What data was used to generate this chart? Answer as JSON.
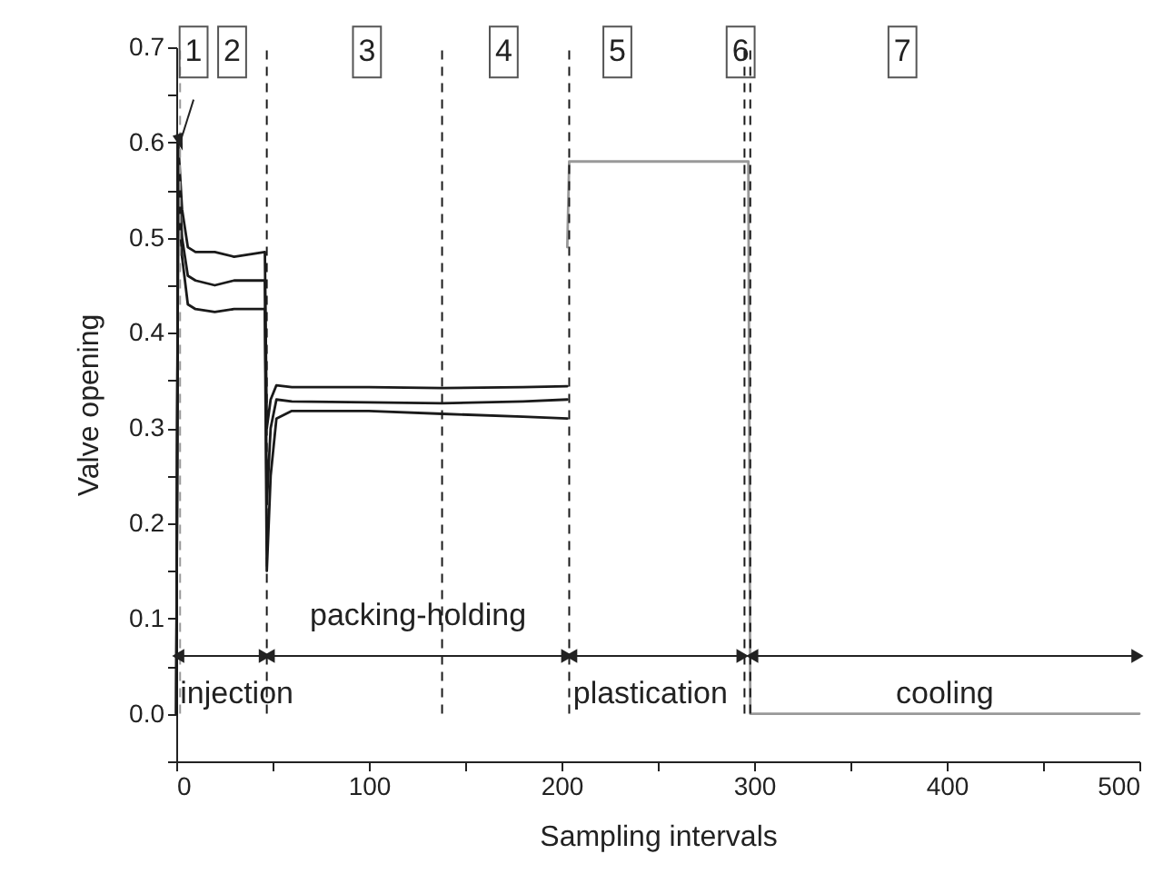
{
  "chart_data": {
    "type": "line",
    "xlabel": "Sampling intervals",
    "ylabel": "Valve opening",
    "xlim": [
      0,
      500
    ],
    "ylim": [
      -0.05,
      0.7
    ],
    "xticks": [
      0,
      {
        "value": 50,
        "label": null
      },
      100,
      {
        "value": 150,
        "label": null
      },
      200,
      {
        "value": 250,
        "label": null
      },
      300,
      {
        "value": 350,
        "label": null
      },
      400,
      {
        "value": 450,
        "label": null
      },
      500
    ],
    "yticks": [
      {
        "value": -0.05,
        "label": null
      },
      {
        "value": 0,
        "label": "0.0"
      },
      {
        "value": 0.05,
        "label": null
      },
      0.1,
      {
        "value": 0.15,
        "label": null
      },
      0.2,
      {
        "value": 0.25,
        "label": null
      },
      0.3,
      {
        "value": 0.35,
        "label": null
      },
      0.4,
      {
        "value": 0.45,
        "label": null
      },
      0.5,
      {
        "value": 0.55,
        "label": null
      },
      0.6,
      {
        "value": 0.65,
        "label": null
      },
      0.7
    ],
    "line_style": "solid",
    "series": [
      {
        "color": "#1a1a1a",
        "x": [
          0,
          1,
          3,
          6,
          10,
          20,
          30,
          46,
          47,
          49,
          52,
          60,
          100,
          138,
          180,
          203
        ],
        "values": [
          0,
          0.6,
          0.53,
          0.49,
          0.485,
          0.485,
          0.48,
          0.485,
          0.3,
          0.33,
          0.345,
          0.343,
          0.343,
          0.342,
          0.343,
          0.344
        ]
      },
      {
        "color": "#1a1a1a",
        "x": [
          0,
          1,
          3,
          6,
          10,
          20,
          30,
          46,
          47,
          49,
          52,
          60,
          100,
          138,
          180,
          203
        ],
        "values": [
          0,
          0.57,
          0.5,
          0.46,
          0.455,
          0.45,
          0.455,
          0.455,
          0.22,
          0.3,
          0.33,
          0.328,
          0.327,
          0.326,
          0.328,
          0.33
        ]
      },
      {
        "color": "#1a1a1a",
        "x": [
          0,
          1,
          3,
          6,
          10,
          20,
          30,
          46,
          47,
          49,
          52,
          60,
          100,
          138,
          180,
          203
        ],
        "values": [
          0,
          0.55,
          0.48,
          0.43,
          0.425,
          0.422,
          0.425,
          0.425,
          0.15,
          0.25,
          0.31,
          0.318,
          0.318,
          0.315,
          0.312,
          0.31
        ]
      },
      {
        "color": "#999999",
        "x": [
          203,
          204,
          297,
          298,
          500
        ],
        "values": [
          0.49,
          0.58,
          0.58,
          0,
          0
        ]
      }
    ],
    "ref_lines": [
      {
        "axis": "x",
        "value": 2,
        "color": "#999999",
        "line_style": "dashed"
      },
      {
        "axis": "x",
        "value": 47,
        "color": "#1a1a1a",
        "line_style": "dashed"
      },
      {
        "axis": "x",
        "value": 138,
        "color": "#1a1a1a",
        "line_style": "dashed"
      },
      {
        "axis": "x",
        "value": 204,
        "color": "#1a1a1a",
        "line_style": "dashed"
      },
      {
        "axis": "x",
        "value": 295,
        "color": "#1a1a1a",
        "line_style": "dashed"
      },
      {
        "axis": "x",
        "value": 298,
        "color": "#1a1a1a",
        "line_style": "dashed"
      }
    ],
    "annotations": [
      {
        "text": "1",
        "x": 9,
        "y": 0.695
      },
      {
        "text": "2",
        "x": 29,
        "y": 0.695
      },
      {
        "text": "3",
        "x": 99,
        "y": 0.695
      },
      {
        "text": "4",
        "x": 170,
        "y": 0.695
      },
      {
        "text": "5",
        "x": 229,
        "y": 0.695
      },
      {
        "text": "6",
        "x": 293,
        "y": 0.695
      },
      {
        "text": "7",
        "x": 377,
        "y": 0.695
      },
      "injection",
      "packing-holding",
      "plastication",
      "cooling"
    ]
  }
}
